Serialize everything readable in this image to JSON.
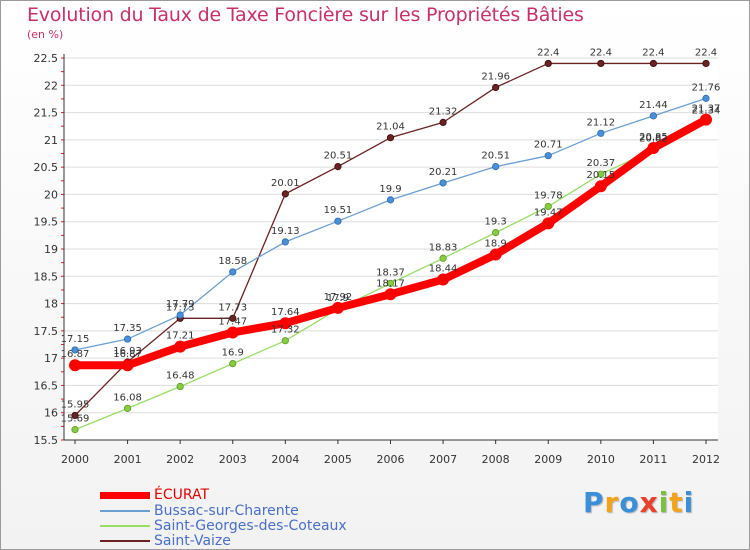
{
  "header": {
    "title": "Evolution du Taux de Taxe Foncière sur les Propriétés Bâties",
    "unit": "(en %)"
  },
  "chart_data": {
    "type": "line",
    "title": "Evolution du Taux de Taxe Foncière sur les Propriétés Bâties",
    "ylabel": "(en %)",
    "xlabel": "",
    "x": [
      "2000",
      "2001",
      "2002",
      "2003",
      "2004",
      "2005",
      "2006",
      "2007",
      "2008",
      "2009",
      "2010",
      "2011",
      "2012"
    ],
    "ylim": [
      15.5,
      22.5
    ],
    "yticks": [
      "15.5",
      "16",
      "16.5",
      "17",
      "17.5",
      "18",
      "18.5",
      "19",
      "19.5",
      "20",
      "20.5",
      "21",
      "21.5",
      "22",
      "22.5"
    ],
    "grid": "horizontal",
    "legend_position": "bottom-left",
    "series": [
      {
        "name": "ÉCURAT",
        "color": "#ff0000",
        "values": [
          16.87,
          16.87,
          17.21,
          17.47,
          17.64,
          17.92,
          18.17,
          18.44,
          18.9,
          19.47,
          20.15,
          20.85,
          21.37
        ],
        "labels": [
          "16.87",
          "16.87",
          "17.21",
          "17.47",
          "17.64",
          "17.92",
          "18.17",
          "18.44",
          "18.9",
          "19.47",
          "20.15",
          "20.85",
          "21.37"
        ]
      },
      {
        "name": "Bussac-sur-Charente",
        "color": "#6a9fd4",
        "values": [
          17.15,
          17.35,
          17.79,
          18.58,
          19.13,
          19.51,
          19.9,
          20.21,
          20.51,
          20.71,
          21.12,
          21.44,
          21.76
        ],
        "labels": [
          "17.15",
          "17.35",
          "17.79",
          "18.58",
          "19.13",
          "19.51",
          "19.9",
          "20.21",
          "20.51",
          "20.71",
          "21.12",
          "21.44",
          "21.76"
        ]
      },
      {
        "name": "Saint-Georges-des-Coteaux",
        "color": "#99dd66",
        "values": [
          15.69,
          16.08,
          16.48,
          16.9,
          17.32,
          17.9,
          18.37,
          18.83,
          19.3,
          19.78,
          20.37,
          20.82,
          21.34
        ],
        "labels": [
          "15.69",
          "16.08",
          "16.48",
          "16.9",
          "17.32",
          "17.9",
          "18.37",
          "18.83",
          "19.3",
          "19.78",
          "20.37",
          "20.82",
          "21.34"
        ]
      },
      {
        "name": "Saint-Vaize",
        "color": "#6b2222",
        "values": [
          15.95,
          16.93,
          17.73,
          17.73,
          20.01,
          20.51,
          21.04,
          21.32,
          21.96,
          22.4,
          22.4,
          22.4,
          22.4
        ],
        "labels": [
          "15.95",
          "16.93",
          "17.73",
          "17.73",
          "20.01",
          "20.51",
          "21.04",
          "21.32",
          "21.96",
          "22.4",
          "22.4",
          "22.4",
          "22.4"
        ]
      }
    ]
  },
  "legend": {
    "items": [
      {
        "label": "ÉCURAT",
        "color": "#ff0000",
        "text_color": "#e60000"
      },
      {
        "label": "Bussac-sur-Charente",
        "color": "#6a9fd4",
        "text_color": "#4a6fc8"
      },
      {
        "label": "Saint-Georges-des-Coteaux",
        "color": "#99dd66",
        "text_color": "#4a6fc8"
      },
      {
        "label": "Saint-Vaize",
        "color": "#6b2222",
        "text_color": "#4a6fc8"
      }
    ]
  },
  "logo": {
    "letters": [
      "P",
      "r",
      "o",
      "x",
      "i",
      "t",
      "i"
    ],
    "colors": [
      "#3b8fd8",
      "#f2a31b",
      "#3b8fd8",
      "#e8402a",
      "#7ac143",
      "#f2a31b",
      "#3b8fd8"
    ]
  }
}
